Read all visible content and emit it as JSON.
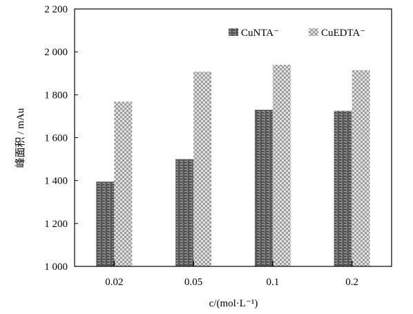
{
  "chart_data": {
    "type": "bar",
    "categories": [
      "0.02",
      "0.05",
      "0.1",
      "0.2"
    ],
    "series": [
      {
        "name": "CuNTA⁻",
        "values": [
          1395,
          1500,
          1730,
          1725
        ],
        "pattern": "dark-brick"
      },
      {
        "name": "CuEDTA⁻",
        "values": [
          1768,
          1908,
          1940,
          1915
        ],
        "pattern": "checker"
      }
    ],
    "ylim": [
      1000,
      2200
    ],
    "yticks": [
      1000,
      1200,
      1400,
      1600,
      1800,
      2000,
      2200
    ],
    "ytick_labels": [
      "1 000",
      "1 200",
      "1 400",
      "1 600",
      "1 800",
      "2 000",
      "2 200"
    ],
    "ylabel": "峰面积 / mAu",
    "xlabel": "c/(mol·L⁻¹)",
    "legend_position": "top-right",
    "grid": false,
    "colors": {
      "cunta_dark": "#555555",
      "cunta_light": "#a8a8a8",
      "cuedta_dark": "#9c9c9c",
      "cuedta_light": "#e2e2e2",
      "axis": "#000000"
    }
  }
}
